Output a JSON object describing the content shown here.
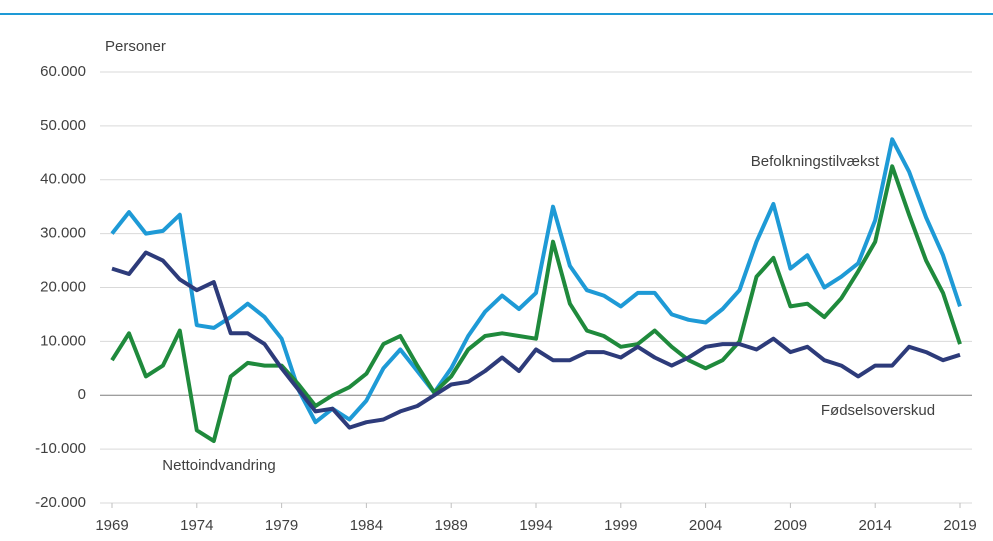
{
  "chart_data": {
    "type": "line",
    "y_label": "Personer",
    "x": [
      1969,
      1970,
      1971,
      1972,
      1973,
      1974,
      1975,
      1976,
      1977,
      1978,
      1979,
      1980,
      1981,
      1982,
      1983,
      1984,
      1985,
      1986,
      1987,
      1988,
      1989,
      1990,
      1991,
      1992,
      1993,
      1994,
      1995,
      1996,
      1997,
      1998,
      1999,
      2000,
      2001,
      2002,
      2003,
      2004,
      2005,
      2006,
      2007,
      2008,
      2009,
      2010,
      2011,
      2012,
      2013,
      2014,
      2015,
      2016,
      2017,
      2018,
      2019
    ],
    "series": [
      {
        "name": "Befolkningstilvækst",
        "color": "#1e9ad6",
        "values": [
          30000,
          34000,
          30000,
          30500,
          33500,
          13000,
          12500,
          14500,
          17000,
          14500,
          10500,
          1000,
          -5000,
          -2500,
          -4500,
          -1000,
          5000,
          8500,
          4500,
          500,
          5000,
          11000,
          15500,
          18500,
          16000,
          19000,
          35000,
          24000,
          19500,
          18500,
          16500,
          19000,
          19000,
          15000,
          14000,
          13500,
          16000,
          19500,
          28500,
          35500,
          23500,
          26000,
          20000,
          22000,
          24500,
          32500,
          47500,
          41500,
          33000,
          26000,
          16500
        ]
      },
      {
        "name": "Nettoindvandring",
        "color": "#1f8a3c",
        "values": [
          6500,
          11500,
          3500,
          5500,
          12000,
          -6500,
          -8500,
          3500,
          6000,
          5500,
          5500,
          2000,
          -2000,
          0,
          1500,
          4000,
          9500,
          11000,
          5500,
          500,
          3500,
          8500,
          11000,
          11500,
          11000,
          10500,
          28500,
          17000,
          12000,
          11000,
          9000,
          9500,
          12000,
          9000,
          6500,
          5000,
          6500,
          10000,
          22000,
          25500,
          16500,
          17000,
          14500,
          18000,
          23000,
          28500,
          42500,
          33500,
          25000,
          19000,
          9500
        ]
      },
      {
        "name": "Fødselsoverskud",
        "color": "#2d3b7a",
        "values": [
          23500,
          22500,
          26500,
          25000,
          21500,
          19500,
          21000,
          11500,
          11500,
          9500,
          5000,
          1000,
          -3000,
          -2500,
          -6000,
          -5000,
          -4500,
          -3000,
          -2000,
          0,
          2000,
          2500,
          4500,
          7000,
          4500,
          8500,
          6500,
          6500,
          8000,
          8000,
          7000,
          9000,
          7000,
          5500,
          7000,
          9000,
          9500,
          9500,
          8500,
          10500,
          8000,
          9000,
          6500,
          5500,
          3500,
          5500,
          5500,
          9000,
          8000,
          6500,
          7500
        ]
      }
    ],
    "xlim": [
      1969,
      2019
    ],
    "xticks": [
      1969,
      1974,
      1979,
      1984,
      1989,
      1994,
      1999,
      2004,
      2009,
      2014,
      2019
    ],
    "ylim": [
      -20000,
      60000
    ],
    "yticks": [
      {
        "value": -20000,
        "label": "-20.000"
      },
      {
        "value": -10000,
        "label": "-10.000"
      },
      0,
      {
        "value": 10000,
        "label": "10.000"
      },
      {
        "value": 20000,
        "label": "20.000"
      },
      {
        "value": 30000,
        "label": "30.000"
      },
      {
        "value": 40000,
        "label": "40.000"
      },
      {
        "value": 50000,
        "label": "50.000"
      },
      {
        "value": 60000,
        "label": "60.000"
      }
    ],
    "grid": true
  }
}
